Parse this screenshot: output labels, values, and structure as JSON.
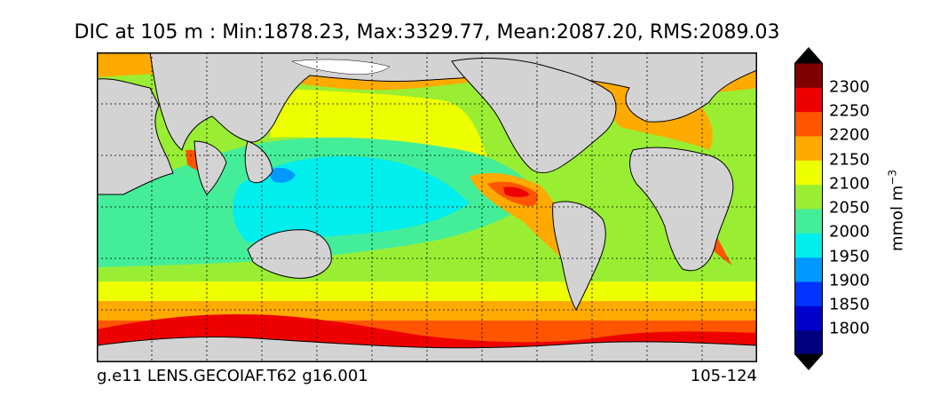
{
  "title": "DIC at 105 m : Min:1878.23, Max:3329.77, Mean:2087.20, RMS:2089.03",
  "footer": {
    "case_name": "g.e11 LENS.GECOIAF.T62 g16.001",
    "year_range": "105-124"
  },
  "colorbar": {
    "unit_base": "mmol m",
    "unit_exponent": "−3",
    "ticks": [
      "2300",
      "2250",
      "2200",
      "2150",
      "2100",
      "2050",
      "2000",
      "1950",
      "1900",
      "1850",
      "1800"
    ],
    "level_colors": [
      "#00007f",
      "#0000cd",
      "#0033ff",
      "#0099ff",
      "#00eeee",
      "#44ee99",
      "#99ee33",
      "#eeff00",
      "#ffaa00",
      "#ff5500",
      "#ee0000",
      "#7f0000"
    ],
    "extend": "both"
  },
  "map": {
    "projection": "cylindrical",
    "gridlines": true,
    "land_color": "#d3d3d3",
    "ice_color": "#ffffff"
  }
}
